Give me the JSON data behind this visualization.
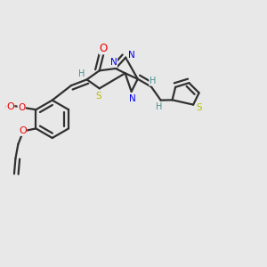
{
  "background_color": "#e8e8e8",
  "atom_colors": {
    "C": "#303030",
    "N": "#0000ee",
    "O": "#ee0000",
    "S": "#bbbb00",
    "H": "#4a9090",
    "bond": "#303030"
  },
  "figsize": [
    3.0,
    3.0
  ],
  "dpi": 100
}
